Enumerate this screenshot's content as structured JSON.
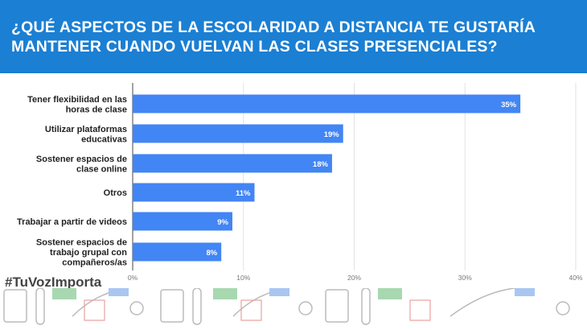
{
  "header": {
    "title": "¿QUÉ ASPECTOS DE LA ESCOLARIDAD A DISTANCIA TE GUSTARÍA MANTENER CUANDO VUELVAN LAS CLASES PRESENCIALES?"
  },
  "hashtag": "#TuVozImporta",
  "colors": {
    "header": "#1b7fd3",
    "bar": "#4285f4"
  },
  "chart_data": {
    "type": "bar",
    "orientation": "horizontal",
    "categories": [
      [
        "Tener flexibilidad en las",
        "horas de clase"
      ],
      [
        "Utilizar plataformas",
        "educativas"
      ],
      [
        "Sostener espacios de",
        "clase online"
      ],
      [
        "Otros"
      ],
      [
        "Trabajar a partir de videos"
      ],
      [
        "Sostener espacios de",
        "trabajo grupal con",
        "compañeros/as"
      ]
    ],
    "values": [
      35,
      19,
      18,
      11,
      9,
      8
    ],
    "data_labels": [
      "35%",
      "19%",
      "18%",
      "11%",
      "9%",
      "8%"
    ],
    "xlim": [
      0,
      40
    ],
    "xticks": [
      "0%",
      "10%",
      "20%",
      "30%",
      "40%"
    ],
    "grid": true
  }
}
